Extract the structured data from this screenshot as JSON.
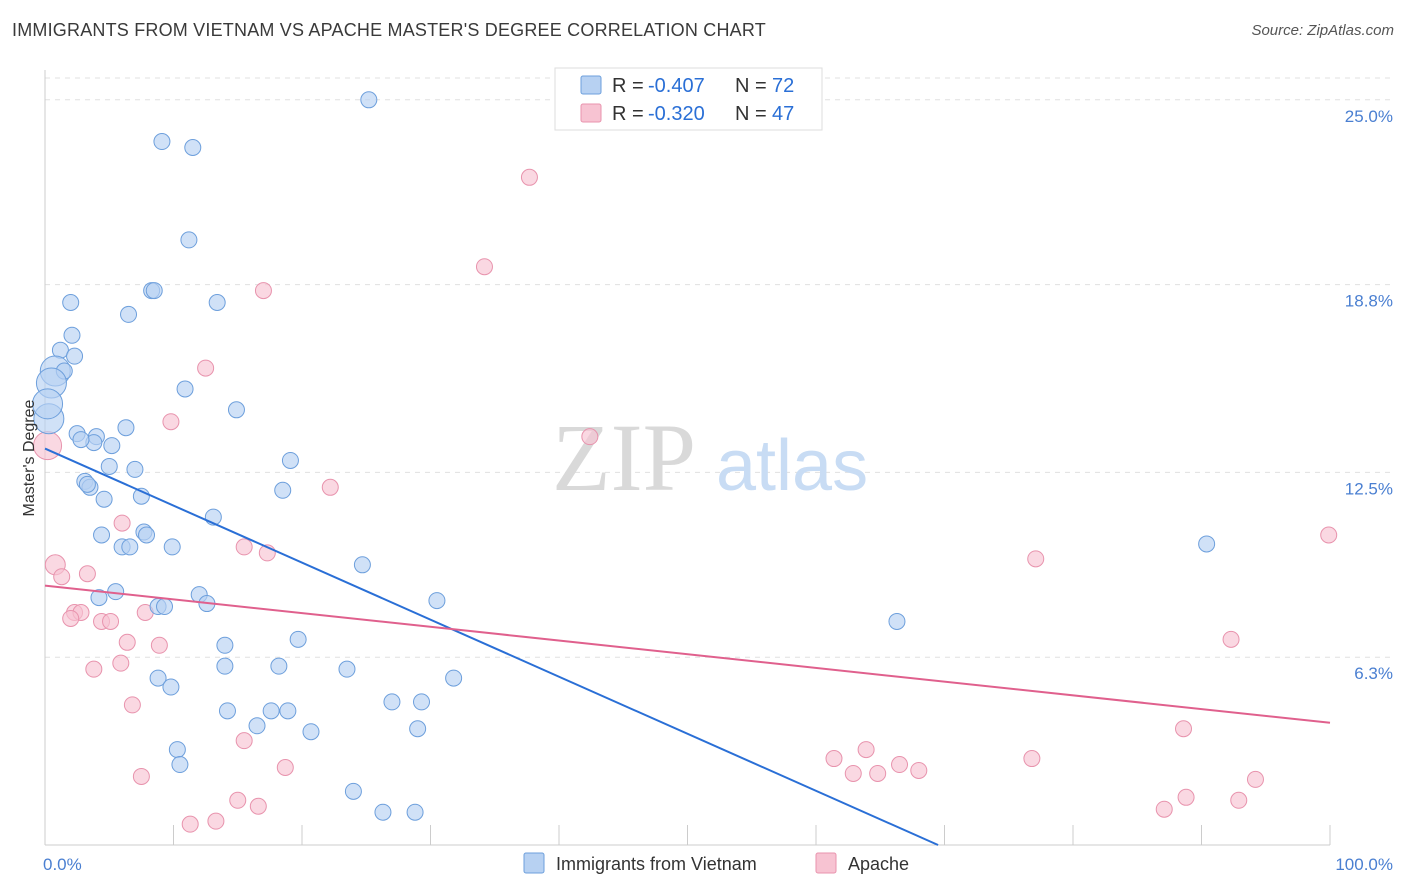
{
  "header": {
    "title": "IMMIGRANTS FROM VIETNAM VS APACHE MASTER'S DEGREE CORRELATION CHART",
    "source": "Source: ZipAtlas.com"
  },
  "watermark": {
    "zip": "ZIP",
    "atlas": "atlas"
  },
  "colors": {
    "blue_fill": "#b7d1f2",
    "blue_stroke": "#6d9fdc",
    "blue_line": "#2a6fd6",
    "pink_fill": "#f7c3d2",
    "pink_stroke": "#e893ad",
    "pink_line": "#e0608d",
    "tick_text": "#4a7fd1",
    "grid": "#e0e0e0"
  },
  "legend": {
    "rows": [
      {
        "r_label": "R =",
        "r_value": "-0.407",
        "n_label": "N =",
        "n_value": "72"
      },
      {
        "r_label": "R =",
        "r_value": "-0.320",
        "n_label": "N =",
        "n_value": "47"
      }
    ]
  },
  "bottom_legend": [
    "Immigrants from Vietnam",
    "Apache"
  ],
  "chart_data": {
    "type": "scatter",
    "title": "IMMIGRANTS FROM VIETNAM VS APACHE MASTER'S DEGREE CORRELATION CHART",
    "xlabel": "",
    "ylabel": "Master's Degree",
    "xlim": [
      0,
      100
    ],
    "ylim": [
      0,
      26
    ],
    "x_tick_labels": [
      {
        "value": 0,
        "label": "0.0%"
      },
      {
        "value": 100,
        "label": "100.0%"
      }
    ],
    "y_ticks": [
      {
        "value": 6.3,
        "label": "6.3%"
      },
      {
        "value": 12.5,
        "label": "12.5%"
      },
      {
        "value": 18.8,
        "label": "18.8%"
      },
      {
        "value": 25.0,
        "label": "25.0%"
      }
    ],
    "grid": true,
    "legend_position": "top-center",
    "series": [
      {
        "name": "Immigrants from Vietnam",
        "color": "#b7d1f2",
        "r": -0.407,
        "n": 72,
        "trend": {
          "x": [
            0,
            69.5
          ],
          "y": [
            13.3,
            0
          ]
        },
        "points": [
          [
            25.2,
            25.0
          ],
          [
            9.1,
            23.6
          ],
          [
            11.5,
            23.4
          ],
          [
            11.2,
            20.3
          ],
          [
            2.0,
            18.2
          ],
          [
            8.3,
            18.6
          ],
          [
            8.5,
            18.6
          ],
          [
            6.5,
            17.8
          ],
          [
            13.4,
            18.2
          ],
          [
            2.1,
            17.1
          ],
          [
            1.2,
            16.6
          ],
          [
            2.3,
            16.4
          ],
          [
            0.8,
            15.9
          ],
          [
            1.5,
            15.9
          ],
          [
            0.5,
            15.5
          ],
          [
            10.9,
            15.3
          ],
          [
            14.9,
            14.6
          ],
          [
            0.3,
            14.3
          ],
          [
            6.3,
            14.0
          ],
          [
            2.5,
            13.8
          ],
          [
            4.0,
            13.7
          ],
          [
            3.8,
            13.5
          ],
          [
            5.2,
            13.4
          ],
          [
            19.1,
            12.9
          ],
          [
            5.0,
            12.7
          ],
          [
            7.0,
            12.6
          ],
          [
            3.1,
            12.2
          ],
          [
            3.5,
            12.0
          ],
          [
            18.5,
            11.9
          ],
          [
            4.6,
            11.6
          ],
          [
            7.5,
            11.7
          ],
          [
            13.1,
            11.0
          ],
          [
            9.9,
            10.0
          ],
          [
            7.7,
            10.5
          ],
          [
            7.9,
            10.4
          ],
          [
            4.4,
            10.4
          ],
          [
            6.0,
            10.0
          ],
          [
            6.6,
            10.0
          ],
          [
            24.7,
            9.4
          ],
          [
            12.0,
            8.4
          ],
          [
            5.5,
            8.5
          ],
          [
            4.2,
            8.3
          ],
          [
            8.8,
            8.0
          ],
          [
            9.3,
            8.0
          ],
          [
            12.6,
            8.1
          ],
          [
            30.5,
            8.2
          ],
          [
            66.3,
            7.5
          ],
          [
            90.4,
            10.1
          ],
          [
            19.7,
            6.9
          ],
          [
            14.0,
            6.7
          ],
          [
            14.0,
            6.0
          ],
          [
            18.2,
            6.0
          ],
          [
            23.5,
            5.9
          ],
          [
            8.8,
            5.6
          ],
          [
            9.8,
            5.3
          ],
          [
            31.8,
            5.6
          ],
          [
            27.0,
            4.8
          ],
          [
            29.3,
            4.8
          ],
          [
            14.2,
            4.5
          ],
          [
            18.9,
            4.5
          ],
          [
            17.6,
            4.5
          ],
          [
            16.5,
            4.0
          ],
          [
            20.7,
            3.8
          ],
          [
            29.0,
            3.9
          ],
          [
            10.3,
            3.2
          ],
          [
            10.5,
            2.7
          ],
          [
            24.0,
            1.8
          ],
          [
            26.3,
            1.1
          ],
          [
            28.8,
            1.1
          ],
          [
            0.2,
            14.8
          ],
          [
            2.8,
            13.6
          ],
          [
            3.3,
            12.1
          ]
        ]
      },
      {
        "name": "Apache",
        "color": "#f7c3d2",
        "r": -0.32,
        "n": 47,
        "trend": {
          "x": [
            0,
            100
          ],
          "y": [
            8.7,
            4.1
          ]
        },
        "points": [
          [
            37.7,
            22.4
          ],
          [
            34.2,
            19.4
          ],
          [
            17.0,
            18.6
          ],
          [
            12.5,
            16.0
          ],
          [
            9.8,
            14.2
          ],
          [
            42.4,
            13.7
          ],
          [
            0.2,
            13.4
          ],
          [
            22.2,
            12.0
          ],
          [
            6.0,
            10.8
          ],
          [
            15.5,
            10.0
          ],
          [
            17.3,
            9.8
          ],
          [
            0.8,
            9.4
          ],
          [
            1.3,
            9.0
          ],
          [
            3.3,
            9.1
          ],
          [
            2.3,
            7.8
          ],
          [
            2.8,
            7.8
          ],
          [
            7.8,
            7.8
          ],
          [
            2.0,
            7.6
          ],
          [
            4.4,
            7.5
          ],
          [
            5.1,
            7.5
          ],
          [
            6.4,
            6.8
          ],
          [
            8.9,
            6.7
          ],
          [
            3.8,
            5.9
          ],
          [
            5.9,
            6.1
          ],
          [
            6.8,
            4.7
          ],
          [
            15.5,
            3.5
          ],
          [
            18.7,
            2.6
          ],
          [
            7.5,
            2.3
          ],
          [
            15.0,
            1.5
          ],
          [
            16.6,
            1.3
          ],
          [
            11.3,
            0.7
          ],
          [
            13.3,
            0.8
          ],
          [
            77.1,
            9.6
          ],
          [
            99.9,
            10.4
          ],
          [
            92.3,
            6.9
          ],
          [
            88.6,
            3.9
          ],
          [
            76.8,
            2.9
          ],
          [
            61.4,
            2.9
          ],
          [
            62.9,
            2.4
          ],
          [
            63.9,
            3.2
          ],
          [
            64.8,
            2.4
          ],
          [
            66.5,
            2.7
          ],
          [
            68.0,
            2.5
          ],
          [
            87.1,
            1.2
          ],
          [
            88.8,
            1.6
          ],
          [
            92.9,
            1.5
          ],
          [
            94.2,
            2.2
          ]
        ]
      }
    ]
  }
}
